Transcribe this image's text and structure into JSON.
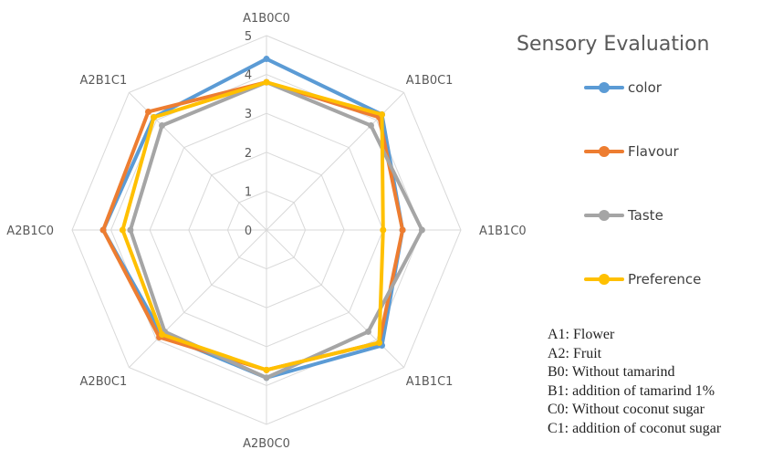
{
  "chart_data": {
    "type": "radar",
    "title": "Sensory Evaluation",
    "categories": [
      "A1B0C0",
      "A1B0C1",
      "A1B1C0",
      "A1B1C1",
      "A2B0C0",
      "A2B0C1",
      "A2B1C0",
      "A2B1C1"
    ],
    "rlim": [
      0,
      5
    ],
    "ticks": [
      "0",
      "1",
      "2",
      "3",
      "4",
      "5"
    ],
    "series": [
      {
        "name": "color",
        "color": "#5B9BD5",
        "values": [
          4.4,
          4.2,
          3.5,
          4.2,
          3.8,
          3.8,
          4.2,
          4.1
        ]
      },
      {
        "name": "Flavour",
        "color": "#ED7D31",
        "values": [
          3.8,
          4.1,
          3.5,
          4.1,
          3.6,
          3.9,
          4.2,
          4.3
        ]
      },
      {
        "name": "Taste",
        "color": "#A5A5A5",
        "values": [
          3.8,
          3.8,
          4.0,
          3.7,
          3.8,
          3.7,
          3.5,
          3.8
        ]
      },
      {
        "name": "Preference",
        "color": "#FFC000",
        "values": [
          3.8,
          4.2,
          3.0,
          4.1,
          3.6,
          3.8,
          3.7,
          4.1
        ]
      }
    ],
    "legend_position": "right",
    "grid": true
  },
  "notes": [
    "A1: Flower",
    "A2: Fruit",
    "B0: Without tamarind",
    "B1: addition of tamarind 1%",
    "C0: Without coconut sugar",
    "C1: addition of coconut sugar"
  ]
}
